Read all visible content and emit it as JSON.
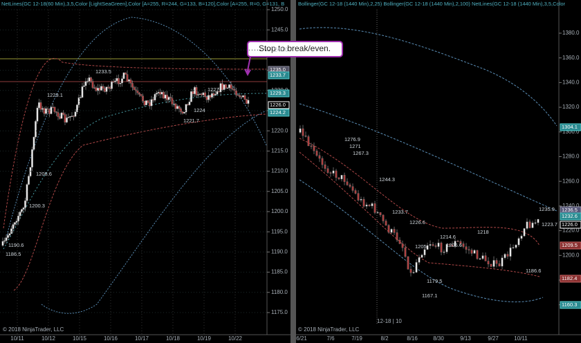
{
  "left_panel": {
    "header": "NetLines(GC 12-18(60 Min),3,5,Color [LightSeaGreen],Color [A=255, R=244, G=133, B=120],Color [A=255, R=0, G=131, B",
    "y_axis": [
      "1250.0",
      "1245.0",
      "1240.0",
      "1235.0",
      "1230.0",
      "1225.0",
      "1220.0",
      "1215.0",
      "1210.0",
      "1205.0",
      "1200.0",
      "1195.0",
      "1190.0",
      "1185.0",
      "1180.0",
      "1175.0"
    ],
    "price_labels": [
      "1235.0",
      "1233.7",
      "1229.3",
      "1226.0",
      "1224.2"
    ],
    "chart_labels": [
      "1233.5",
      "1229.1",
      "1208.6",
      "1200.3",
      "1190.6",
      "1186.5",
      "1221.7",
      "1224",
      "1227"
    ],
    "x_axis": [
      "10/11",
      "10/12",
      "10/15",
      "10/16",
      "10/17",
      "10/18",
      "10/19",
      "10/22"
    ],
    "copyright": "© 2018 NinjaTrader, LLC"
  },
  "right_panel": {
    "header": "Bollinger(GC 12-18 (1440 Min),2,25)  Bollinger(GC 12-18 (1440 Min),2,100)  NetLines(GC 12-18 (1440 Min),3,5,Color",
    "y_axis": [
      "1380.0",
      "1360.0",
      "1340.0",
      "1320.0",
      "1300.0",
      "1280.0",
      "1260.0",
      "1240.0",
      "1220.0",
      "1200.0",
      "1180.0",
      "1160.0"
    ],
    "price_labels": [
      "1304.1",
      "1236.5",
      "1232.6",
      "1226.0",
      "1209.5",
      "1182.4",
      "1160.3"
    ],
    "chart_labels": [
      "1276.9",
      "1271",
      "1267.3",
      "1244.3",
      "1233.7",
      "1226.6",
      "1218",
      "1214.6",
      "1205",
      "1206.6",
      "1186.6",
      "1179.5",
      "1167.1",
      "1235.9",
      "1223.7"
    ],
    "x_axis": [
      "6/21",
      "7/6",
      "7/19",
      "8/2",
      "8/16",
      "8/30",
      "9/13",
      "9/27",
      "10/11"
    ],
    "period": "12-18 | 10",
    "copyright": "© 2018 NinjaTrader, LLC"
  },
  "annotation": "Stop to break/even."
}
